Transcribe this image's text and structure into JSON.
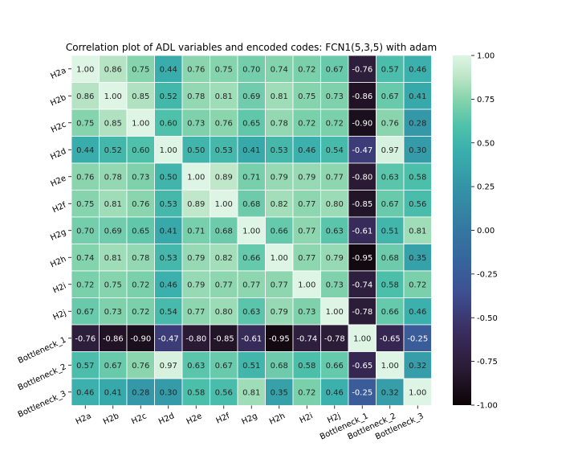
{
  "chart_data": {
    "type": "heatmap",
    "title": "Correlation plot of ADL variables and encoded codes: FCN1(5,3,5) with adam",
    "row_labels": [
      "H2a",
      "H2b",
      "H2c",
      "H2d",
      "H2e",
      "H2f",
      "H2g",
      "H2h",
      "H2i",
      "H2j",
      "Bottleneck_1",
      "Bottleneck_2",
      "Bottleneck_3"
    ],
    "col_labels": [
      "H2a",
      "H2b",
      "H2c",
      "H2d",
      "H2e",
      "H2f",
      "H2g",
      "H2h",
      "H2i",
      "H2j",
      "Bottleneck_1",
      "Bottleneck_2",
      "Bottleneck_3"
    ],
    "values": [
      [
        1.0,
        0.86,
        0.75,
        0.44,
        0.76,
        0.75,
        0.7,
        0.74,
        0.72,
        0.67,
        -0.76,
        0.57,
        0.46
      ],
      [
        0.86,
        1.0,
        0.85,
        0.52,
        0.78,
        0.81,
        0.69,
        0.81,
        0.75,
        0.73,
        -0.86,
        0.67,
        0.41
      ],
      [
        0.75,
        0.85,
        1.0,
        0.6,
        0.73,
        0.76,
        0.65,
        0.78,
        0.72,
        0.72,
        -0.9,
        0.76,
        0.28
      ],
      [
        0.44,
        0.52,
        0.6,
        1.0,
        0.5,
        0.53,
        0.41,
        0.53,
        0.46,
        0.54,
        -0.47,
        0.97,
        0.3
      ],
      [
        0.76,
        0.78,
        0.73,
        0.5,
        1.0,
        0.89,
        0.71,
        0.79,
        0.79,
        0.77,
        -0.8,
        0.63,
        0.58
      ],
      [
        0.75,
        0.81,
        0.76,
        0.53,
        0.89,
        1.0,
        0.68,
        0.82,
        0.77,
        0.8,
        -0.85,
        0.67,
        0.56
      ],
      [
        0.7,
        0.69,
        0.65,
        0.41,
        0.71,
        0.68,
        1.0,
        0.66,
        0.77,
        0.63,
        -0.61,
        0.51,
        0.81
      ],
      [
        0.74,
        0.81,
        0.78,
        0.53,
        0.79,
        0.82,
        0.66,
        1.0,
        0.77,
        0.79,
        -0.95,
        0.68,
        0.35
      ],
      [
        0.72,
        0.75,
        0.72,
        0.46,
        0.79,
        0.77,
        0.77,
        0.77,
        1.0,
        0.73,
        -0.74,
        0.58,
        0.72
      ],
      [
        0.67,
        0.73,
        0.72,
        0.54,
        0.77,
        0.8,
        0.63,
        0.79,
        0.73,
        1.0,
        -0.78,
        0.66,
        0.46
      ],
      [
        -0.76,
        -0.86,
        -0.9,
        -0.47,
        -0.8,
        -0.85,
        -0.61,
        -0.95,
        -0.74,
        -0.78,
        1.0,
        -0.65,
        -0.25
      ],
      [
        0.57,
        0.67,
        0.76,
        0.97,
        0.63,
        0.67,
        0.51,
        0.68,
        0.58,
        0.66,
        -0.65,
        1.0,
        0.32
      ],
      [
        0.46,
        0.41,
        0.28,
        0.3,
        0.58,
        0.56,
        0.81,
        0.35,
        0.72,
        0.46,
        -0.25,
        0.32,
        1.0
      ]
    ],
    "vmin": -1.0,
    "vmax": 1.0,
    "colorbar_ticks": [
      "-1.00",
      "-0.75",
      "-0.50",
      "-0.25",
      "0.00",
      "0.25",
      "0.50",
      "0.75",
      "1.00"
    ],
    "colormap": "mako",
    "colormap_stops": [
      {
        "t": 0.0,
        "color": "#0b0405"
      },
      {
        "t": 0.1,
        "color": "#2a1a33"
      },
      {
        "t": 0.22,
        "color": "#3b2f63"
      },
      {
        "t": 0.32,
        "color": "#3e4f92"
      },
      {
        "t": 0.42,
        "color": "#36669d"
      },
      {
        "t": 0.52,
        "color": "#357ba2"
      },
      {
        "t": 0.62,
        "color": "#3493a7"
      },
      {
        "t": 0.72,
        "color": "#39adac"
      },
      {
        "t": 0.8,
        "color": "#4fc1aa"
      },
      {
        "t": 0.88,
        "color": "#8ad5ad"
      },
      {
        "t": 0.94,
        "color": "#bde6c8"
      },
      {
        "t": 1.0,
        "color": "#def5e5"
      }
    ],
    "cell_border_color": "#ffffff",
    "grid": false,
    "legend": "colorbar-right"
  }
}
